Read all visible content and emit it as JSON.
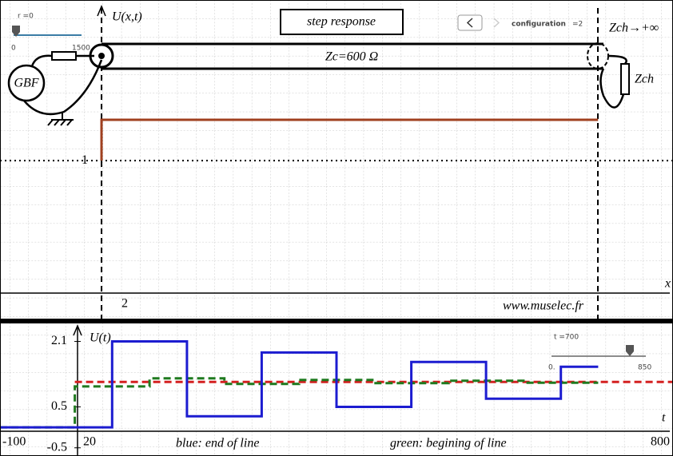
{
  "ui": {
    "title": "step response",
    "configuration": "configuration",
    "configuration_value": "=2",
    "zc": "Zc=600 Ω",
    "gbf": "GBF",
    "zch": "Zch",
    "zch_condition": "Zch→+∞",
    "r_slider": {
      "label": "r =0",
      "min": "0",
      "max": "1500"
    },
    "t_slider": {
      "label": "t =700",
      "min": "0.",
      "max": "850"
    }
  },
  "chart_data": [
    {
      "type": "line",
      "xlabel": "x",
      "ylabel": "U(x,t)",
      "annotations": [
        "2",
        "www.muselec.fr"
      ],
      "xlim": [
        -0.2045,
        1.151
      ],
      "ylim": [
        -0.2,
        2.22
      ],
      "yticks": [
        1
      ],
      "series": [
        {
          "color": "#a0401f",
          "x": [
            0,
            0,
            1
          ],
          "values": [
            1,
            1.31,
            1.31
          ]
        }
      ]
    },
    {
      "type": "line",
      "xlabel": "t",
      "ylabel": "U(t)",
      "annotations": [
        "20",
        "blue: end of line",
        "green: begining of line"
      ],
      "xlim": [
        -100,
        800
      ],
      "ylim": [
        -0.7,
        2.54
      ],
      "xticks": [
        -100,
        800
      ],
      "yticks": [
        -0.5,
        0.5,
        2.1
      ],
      "series": [
        {
          "color": "#d42020",
          "dash": true,
          "x": [
            0,
            800
          ],
          "values": [
            1.11,
            1.11
          ]
        },
        {
          "color": "#1f7a1f",
          "dash": true,
          "x": [
            -100,
            0,
            0,
            100,
            100,
            200,
            200,
            300,
            300,
            400,
            400,
            500,
            500,
            600,
            600,
            700
          ],
          "values": [
            0,
            0,
            1.0,
            1.0,
            1.2,
            1.2,
            1.06,
            1.06,
            1.16,
            1.16,
            1.08,
            1.08,
            1.14,
            1.14,
            1.09,
            1.09
          ]
        },
        {
          "color": "#1c1cd0",
          "dash": false,
          "x": [
            -100,
            50,
            50,
            150,
            150,
            250,
            250,
            350,
            350,
            450,
            450,
            550,
            550,
            650,
            650,
            700
          ],
          "values": [
            0,
            0,
            2.1,
            2.1,
            0.27,
            0.27,
            1.83,
            1.83,
            0.5,
            0.5,
            1.6,
            1.6,
            0.7,
            0.7,
            1.48,
            1.48
          ]
        }
      ]
    }
  ]
}
